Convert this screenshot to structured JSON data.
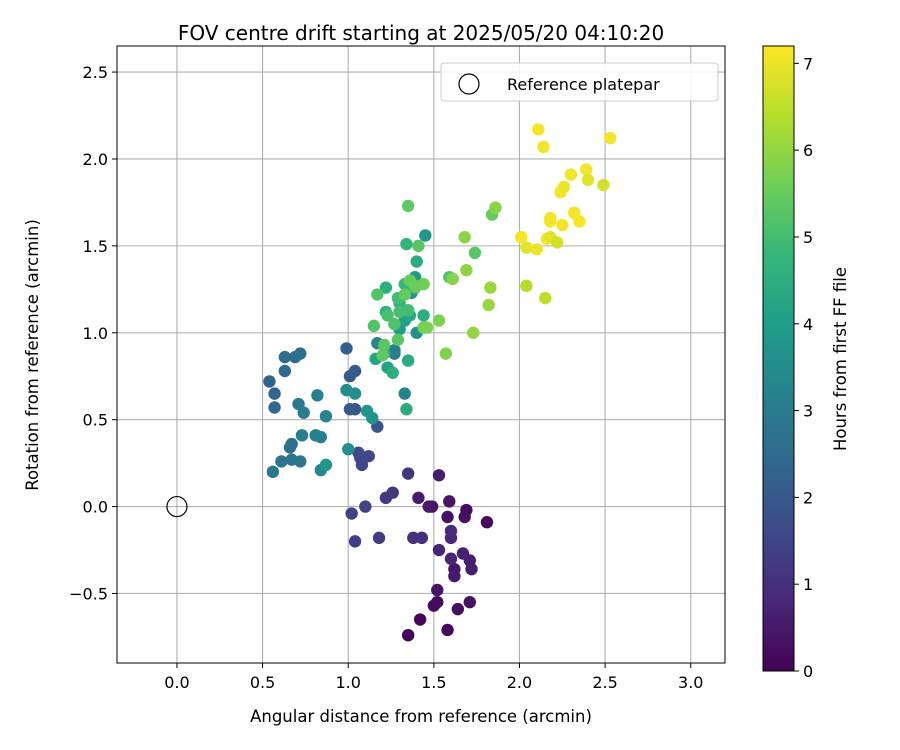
{
  "chart_data": {
    "type": "scatter",
    "title": "FOV centre drift starting at 2025/05/20 04:10:20",
    "xlabel": "Angular distance from reference (arcmin)",
    "ylabel": "Rotation from reference (arcmin)",
    "xlim": [
      -0.35,
      3.2
    ],
    "ylim": [
      -0.9,
      2.65
    ],
    "x_ticks": [
      0.0,
      0.5,
      1.0,
      1.5,
      2.0,
      2.5,
      3.0
    ],
    "x_tick_labels": [
      "0.0",
      "0.5",
      "1.0",
      "1.5",
      "2.0",
      "2.5",
      "3.0"
    ],
    "y_ticks": [
      -0.5,
      0.0,
      0.5,
      1.0,
      1.5,
      2.0,
      2.5
    ],
    "y_tick_labels": [
      "−0.5",
      "0.0",
      "0.5",
      "1.0",
      "1.5",
      "2.0",
      "2.5"
    ],
    "grid": true,
    "legend": {
      "placement": "top-right",
      "entries": [
        {
          "label": "Reference platepar",
          "marker": "open-circle"
        }
      ]
    },
    "reference_point": {
      "x": 0.0,
      "y": 0.0
    },
    "colorbar": {
      "label": "Hours from first FF file",
      "colormap": "viridis",
      "range": [
        0,
        7.2
      ],
      "ticks": [
        0,
        1,
        2,
        3,
        4,
        5,
        6,
        7
      ],
      "tick_labels": [
        "0",
        "1",
        "2",
        "3",
        "4",
        "5",
        "6",
        "7"
      ]
    },
    "colormap_stops": [
      "#440154",
      "#482878",
      "#3e4989",
      "#31688e",
      "#26828e",
      "#1f9e89",
      "#35b779",
      "#6ece58",
      "#b5de2b",
      "#fde725"
    ],
    "points": [
      {
        "x": 1.35,
        "y": -0.74,
        "c": 0.05
      },
      {
        "x": 1.42,
        "y": -0.65,
        "c": 0.1
      },
      {
        "x": 1.58,
        "y": -0.71,
        "c": 0.15
      },
      {
        "x": 1.5,
        "y": -0.57,
        "c": 0.2
      },
      {
        "x": 1.52,
        "y": -0.55,
        "c": 0.25
      },
      {
        "x": 1.64,
        "y": -0.59,
        "c": 0.3
      },
      {
        "x": 1.71,
        "y": -0.55,
        "c": 0.35
      },
      {
        "x": 1.52,
        "y": -0.48,
        "c": 0.4
      },
      {
        "x": 1.62,
        "y": -0.36,
        "c": 0.45
      },
      {
        "x": 1.62,
        "y": -0.4,
        "c": 0.5
      },
      {
        "x": 1.72,
        "y": -0.36,
        "c": 0.55
      },
      {
        "x": 1.71,
        "y": -0.31,
        "c": 0.6
      },
      {
        "x": 1.67,
        "y": -0.27,
        "c": 0.65
      },
      {
        "x": 1.6,
        "y": -0.3,
        "c": 0.7
      },
      {
        "x": 1.53,
        "y": -0.25,
        "c": 0.75
      },
      {
        "x": 1.6,
        "y": -0.18,
        "c": 0.8
      },
      {
        "x": 1.6,
        "y": -0.14,
        "c": 0.85
      },
      {
        "x": 1.81,
        "y": -0.09,
        "c": 0.2
      },
      {
        "x": 1.68,
        "y": -0.06,
        "c": 0.3
      },
      {
        "x": 1.69,
        "y": -0.02,
        "c": 0.25
      },
      {
        "x": 1.58,
        "y": -0.06,
        "c": 0.35
      },
      {
        "x": 1.59,
        "y": 0.03,
        "c": 0.4
      },
      {
        "x": 1.49,
        "y": 0.0,
        "c": 0.45
      },
      {
        "x": 1.47,
        "y": 0.0,
        "c": 0.5
      },
      {
        "x": 1.41,
        "y": 0.05,
        "c": 0.55
      },
      {
        "x": 1.53,
        "y": 0.18,
        "c": 0.6
      },
      {
        "x": 1.43,
        "y": -0.18,
        "c": 1.0
      },
      {
        "x": 1.38,
        "y": -0.18,
        "c": 1.05
      },
      {
        "x": 1.35,
        "y": 0.19,
        "c": 1.1
      },
      {
        "x": 1.26,
        "y": 0.08,
        "c": 1.15
      },
      {
        "x": 1.22,
        "y": 0.05,
        "c": 1.2
      },
      {
        "x": 1.18,
        "y": -0.18,
        "c": 1.3
      },
      {
        "x": 1.04,
        "y": -0.2,
        "c": 1.35
      },
      {
        "x": 1.02,
        "y": -0.04,
        "c": 1.4
      },
      {
        "x": 1.1,
        "y": 0.0,
        "c": 1.45
      },
      {
        "x": 1.08,
        "y": 0.24,
        "c": 1.5
      },
      {
        "x": 1.12,
        "y": 0.29,
        "c": 1.55
      },
      {
        "x": 1.07,
        "y": 0.28,
        "c": 1.6
      },
      {
        "x": 1.06,
        "y": 0.31,
        "c": 1.65
      },
      {
        "x": 1.0,
        "y": 0.33,
        "c": 3.6
      },
      {
        "x": 1.17,
        "y": 0.46,
        "c": 1.9
      },
      {
        "x": 1.04,
        "y": 0.56,
        "c": 1.95
      },
      {
        "x": 1.01,
        "y": 0.56,
        "c": 2.0
      },
      {
        "x": 1.01,
        "y": 0.75,
        "c": 2.05
      },
      {
        "x": 1.04,
        "y": 0.78,
        "c": 2.1
      },
      {
        "x": 0.99,
        "y": 0.91,
        "c": 2.2
      },
      {
        "x": 0.54,
        "y": 0.72,
        "c": 2.3
      },
      {
        "x": 0.57,
        "y": 0.65,
        "c": 2.35
      },
      {
        "x": 0.57,
        "y": 0.57,
        "c": 2.4
      },
      {
        "x": 0.63,
        "y": 0.86,
        "c": 2.45
      },
      {
        "x": 0.63,
        "y": 0.78,
        "c": 2.5
      },
      {
        "x": 0.69,
        "y": 0.86,
        "c": 2.55
      },
      {
        "x": 0.72,
        "y": 0.88,
        "c": 2.6
      },
      {
        "x": 0.66,
        "y": 0.34,
        "c": 2.65
      },
      {
        "x": 0.67,
        "y": 0.36,
        "c": 2.7
      },
      {
        "x": 0.61,
        "y": 0.26,
        "c": 2.75
      },
      {
        "x": 0.67,
        "y": 0.27,
        "c": 2.8
      },
      {
        "x": 0.56,
        "y": 0.2,
        "c": 2.85
      },
      {
        "x": 0.72,
        "y": 0.26,
        "c": 2.9
      },
      {
        "x": 0.71,
        "y": 0.59,
        "c": 2.95
      },
      {
        "x": 0.74,
        "y": 0.54,
        "c": 3.0
      },
      {
        "x": 0.73,
        "y": 0.41,
        "c": 3.05
      },
      {
        "x": 0.81,
        "y": 0.41,
        "c": 3.1
      },
      {
        "x": 0.84,
        "y": 0.4,
        "c": 3.15
      },
      {
        "x": 0.82,
        "y": 0.64,
        "c": 3.2
      },
      {
        "x": 0.87,
        "y": 0.52,
        "c": 3.25
      },
      {
        "x": 0.84,
        "y": 0.21,
        "c": 3.3
      },
      {
        "x": 0.87,
        "y": 0.24,
        "c": 3.8
      },
      {
        "x": 0.99,
        "y": 0.67,
        "c": 3.5
      },
      {
        "x": 1.04,
        "y": 0.65,
        "c": 3.55
      },
      {
        "x": 1.11,
        "y": 0.55,
        "c": 3.7
      },
      {
        "x": 1.14,
        "y": 0.51,
        "c": 3.75
      },
      {
        "x": 1.33,
        "y": 0.65,
        "c": 3.2
      },
      {
        "x": 1.34,
        "y": 0.56,
        "c": 4.4
      },
      {
        "x": 1.27,
        "y": 0.88,
        "c": 3.0
      },
      {
        "x": 1.27,
        "y": 0.9,
        "c": 3.1
      },
      {
        "x": 1.17,
        "y": 0.94,
        "c": 3.3
      },
      {
        "x": 1.23,
        "y": 0.8,
        "c": 4.1
      },
      {
        "x": 1.26,
        "y": 0.77,
        "c": 4.5
      },
      {
        "x": 1.16,
        "y": 0.85,
        "c": 4.2
      },
      {
        "x": 1.21,
        "y": 0.88,
        "c": 4.6
      },
      {
        "x": 1.35,
        "y": 0.84,
        "c": 4.4
      },
      {
        "x": 1.3,
        "y": 1.02,
        "c": 3.9
      },
      {
        "x": 1.4,
        "y": 1.0,
        "c": 3.6
      },
      {
        "x": 1.33,
        "y": 1.07,
        "c": 4.0
      },
      {
        "x": 1.36,
        "y": 1.1,
        "c": 4.3
      },
      {
        "x": 1.44,
        "y": 1.1,
        "c": 4.5
      },
      {
        "x": 1.22,
        "y": 1.12,
        "c": 4.6
      },
      {
        "x": 1.22,
        "y": 1.26,
        "c": 4.5
      },
      {
        "x": 1.3,
        "y": 1.17,
        "c": 4.7
      },
      {
        "x": 1.37,
        "y": 1.23,
        "c": 3.7
      },
      {
        "x": 1.45,
        "y": 1.56,
        "c": 3.8
      },
      {
        "x": 1.34,
        "y": 1.51,
        "c": 4.7
      },
      {
        "x": 1.4,
        "y": 1.41,
        "c": 4.4
      },
      {
        "x": 1.39,
        "y": 1.32,
        "c": 3.9
      },
      {
        "x": 1.33,
        "y": 1.28,
        "c": 4.8
      },
      {
        "x": 1.39,
        "y": 1.26,
        "c": 5.1
      },
      {
        "x": 1.29,
        "y": 1.2,
        "c": 5.0
      },
      {
        "x": 1.3,
        "y": 1.12,
        "c": 5.05
      },
      {
        "x": 1.23,
        "y": 1.1,
        "c": 5.1
      },
      {
        "x": 1.27,
        "y": 1.05,
        "c": 5.15
      },
      {
        "x": 1.15,
        "y": 1.04,
        "c": 5.2
      },
      {
        "x": 1.17,
        "y": 1.22,
        "c": 5.25
      },
      {
        "x": 1.29,
        "y": 0.96,
        "c": 5.3
      },
      {
        "x": 1.21,
        "y": 0.93,
        "c": 5.35
      },
      {
        "x": 1.2,
        "y": 0.87,
        "c": 5.4
      },
      {
        "x": 1.33,
        "y": 1.22,
        "c": 5.45
      },
      {
        "x": 1.35,
        "y": 1.13,
        "c": 5.0
      },
      {
        "x": 1.36,
        "y": 1.3,
        "c": 5.5
      },
      {
        "x": 1.39,
        "y": 1.27,
        "c": 5.55
      },
      {
        "x": 1.44,
        "y": 1.28,
        "c": 5.6
      },
      {
        "x": 1.41,
        "y": 1.5,
        "c": 5.3
      },
      {
        "x": 1.44,
        "y": 1.03,
        "c": 5.65
      },
      {
        "x": 1.46,
        "y": 1.03,
        "c": 5.7
      },
      {
        "x": 1.35,
        "y": 1.73,
        "c": 5.4
      },
      {
        "x": 1.53,
        "y": 1.07,
        "c": 5.75
      },
      {
        "x": 1.57,
        "y": 0.88,
        "c": 5.8
      },
      {
        "x": 1.59,
        "y": 1.32,
        "c": 5.2
      },
      {
        "x": 1.61,
        "y": 1.31,
        "c": 5.85
      },
      {
        "x": 1.68,
        "y": 1.55,
        "c": 5.9
      },
      {
        "x": 1.74,
        "y": 1.46,
        "c": 5.3
      },
      {
        "x": 1.69,
        "y": 1.36,
        "c": 5.95
      },
      {
        "x": 1.73,
        "y": 1.0,
        "c": 6.0
      },
      {
        "x": 1.82,
        "y": 1.16,
        "c": 6.05
      },
      {
        "x": 1.83,
        "y": 1.26,
        "c": 6.1
      },
      {
        "x": 1.84,
        "y": 1.68,
        "c": 5.5
      },
      {
        "x": 1.86,
        "y": 1.72,
        "c": 5.9
      },
      {
        "x": 2.04,
        "y": 1.27,
        "c": 6.4
      },
      {
        "x": 2.15,
        "y": 1.2,
        "c": 6.5
      },
      {
        "x": 2.01,
        "y": 1.55,
        "c": 7.1
      },
      {
        "x": 2.04,
        "y": 1.49,
        "c": 6.9
      },
      {
        "x": 2.1,
        "y": 1.48,
        "c": 7.0
      },
      {
        "x": 2.11,
        "y": 2.17,
        "c": 7.1
      },
      {
        "x": 2.14,
        "y": 2.07,
        "c": 7.05
      },
      {
        "x": 2.16,
        "y": 1.54,
        "c": 7.1
      },
      {
        "x": 2.18,
        "y": 1.55,
        "c": 6.9
      },
      {
        "x": 2.18,
        "y": 1.64,
        "c": 7.1
      },
      {
        "x": 2.18,
        "y": 1.66,
        "c": 7.05
      },
      {
        "x": 2.22,
        "y": 1.52,
        "c": 6.7
      },
      {
        "x": 2.24,
        "y": 1.81,
        "c": 7.1
      },
      {
        "x": 2.26,
        "y": 1.84,
        "c": 7.0
      },
      {
        "x": 2.25,
        "y": 1.62,
        "c": 7.1
      },
      {
        "x": 2.3,
        "y": 1.91,
        "c": 7.05
      },
      {
        "x": 2.32,
        "y": 1.69,
        "c": 7.1
      },
      {
        "x": 2.35,
        "y": 1.64,
        "c": 7.15
      },
      {
        "x": 2.39,
        "y": 1.94,
        "c": 7.1
      },
      {
        "x": 2.4,
        "y": 1.88,
        "c": 6.9
      },
      {
        "x": 2.49,
        "y": 1.85,
        "c": 6.7
      },
      {
        "x": 2.53,
        "y": 2.12,
        "c": 7.1
      }
    ]
  }
}
